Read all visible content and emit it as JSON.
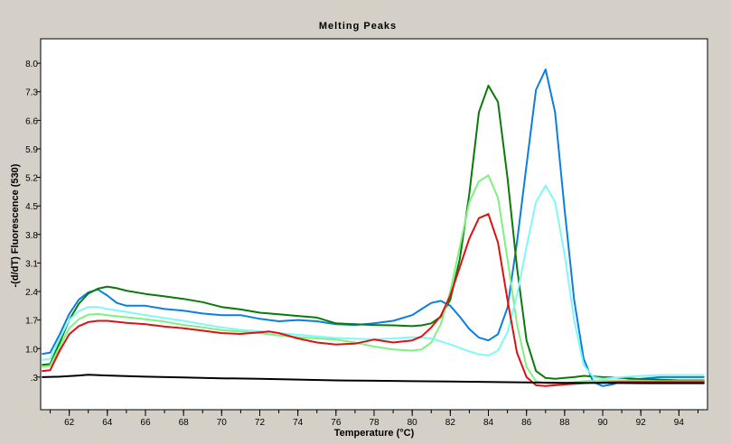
{
  "chart_data": {
    "type": "line",
    "title": "Melting Peaks",
    "xlabel": "Temperature (°C)",
    "ylabel": "-(d/dT) Fluorescence (530)",
    "xlim": [
      60.5,
      95.5
    ],
    "ylim": [
      -0.5,
      8.6
    ],
    "x_ticks_minor": [
      61,
      62,
      63,
      64,
      65,
      66,
      67,
      68,
      69,
      70,
      71,
      72,
      73,
      74,
      75,
      76,
      77,
      78,
      79,
      80,
      81,
      82,
      83,
      84,
      85,
      86,
      87,
      88,
      89,
      90,
      91,
      92,
      93,
      94,
      95
    ],
    "x_tick_labels": [
      "62",
      "64",
      "66",
      "68",
      "70",
      "72",
      "74",
      "76",
      "78",
      "80",
      "82",
      "84",
      "86",
      "88",
      "90",
      "92",
      "94"
    ],
    "y_tick_labels": [
      "8.0",
      "7.3",
      "6.6",
      "5.9",
      "5.2",
      "4.5",
      "3.8",
      "3.1",
      "2.4",
      "1.7",
      "1.0",
      ".3"
    ],
    "grid": false,
    "series": [
      {
        "color": "#0a7fe0",
        "x": [
          60.6,
          61.0,
          61.5,
          62.0,
          62.5,
          63.0,
          63.5,
          64.0,
          64.5,
          65.0,
          66.0,
          67.0,
          68.0,
          69.0,
          70.0,
          71.0,
          72.0,
          73.0,
          74.0,
          75.0,
          76.0,
          77.0,
          78.0,
          79.0,
          80.0,
          80.5,
          81.0,
          81.5,
          82.0,
          82.5,
          83.0,
          83.5,
          84.0,
          84.5,
          85.0,
          85.5,
          86.0,
          86.5,
          87.0,
          87.5,
          88.0,
          88.5,
          89.0,
          89.5,
          90.0,
          90.5,
          91.0,
          91.5,
          92.0,
          93.0,
          94.0,
          95.3
        ],
        "y": [
          0.87,
          0.9,
          1.35,
          1.85,
          2.2,
          2.38,
          2.45,
          2.3,
          2.12,
          2.05,
          2.05,
          1.97,
          1.93,
          1.86,
          1.82,
          1.82,
          1.73,
          1.67,
          1.7,
          1.67,
          1.6,
          1.58,
          1.62,
          1.68,
          1.82,
          1.97,
          2.12,
          2.17,
          2.05,
          1.78,
          1.48,
          1.27,
          1.2,
          1.35,
          2.0,
          3.6,
          5.5,
          7.35,
          7.85,
          6.8,
          4.4,
          2.2,
          0.75,
          0.18,
          0.08,
          0.12,
          0.2,
          0.24,
          0.26,
          0.3,
          0.3,
          0.3
        ]
      },
      {
        "color": "#0a7a0a",
        "x": [
          60.6,
          61.0,
          61.5,
          62.0,
          62.5,
          63.0,
          63.5,
          64.0,
          64.5,
          65.0,
          66.0,
          67.0,
          68.0,
          69.0,
          70.0,
          71.0,
          72.0,
          73.0,
          74.0,
          75.0,
          76.0,
          77.0,
          78.0,
          79.0,
          80.0,
          80.5,
          81.0,
          81.5,
          82.0,
          82.5,
          83.0,
          83.5,
          84.0,
          84.5,
          85.0,
          85.5,
          86.0,
          86.5,
          87.0,
          87.5,
          88.0,
          88.5,
          89.0,
          90.0,
          91.0,
          92.0,
          93.0,
          94.0,
          95.3
        ],
        "y": [
          0.6,
          0.62,
          1.15,
          1.7,
          2.1,
          2.35,
          2.47,
          2.52,
          2.48,
          2.42,
          2.34,
          2.28,
          2.22,
          2.14,
          2.02,
          1.96,
          1.88,
          1.84,
          1.8,
          1.76,
          1.62,
          1.6,
          1.58,
          1.57,
          1.55,
          1.57,
          1.62,
          1.78,
          2.2,
          3.2,
          4.8,
          6.8,
          7.45,
          7.05,
          5.2,
          3.0,
          1.2,
          0.45,
          0.28,
          0.26,
          0.28,
          0.3,
          0.33,
          0.3,
          0.28,
          0.25,
          0.24,
          0.22,
          0.22
        ]
      },
      {
        "color": "#80f080",
        "x": [
          60.6,
          61.0,
          61.5,
          62.0,
          62.5,
          63.0,
          63.5,
          64.0,
          65.0,
          66.0,
          67.0,
          68.0,
          69.0,
          70.0,
          71.0,
          72.0,
          73.0,
          74.0,
          75.0,
          76.0,
          77.0,
          78.0,
          79.0,
          80.0,
          80.5,
          81.0,
          81.5,
          82.0,
          82.5,
          83.0,
          83.5,
          84.0,
          84.5,
          85.0,
          85.5,
          86.0,
          86.5,
          87.0,
          87.5,
          88.0,
          89.0,
          90.0,
          91.0,
          92.0,
          93.0,
          94.0,
          95.3
        ],
        "y": [
          0.55,
          0.58,
          1.05,
          1.5,
          1.72,
          1.83,
          1.85,
          1.82,
          1.77,
          1.72,
          1.66,
          1.58,
          1.52,
          1.45,
          1.42,
          1.38,
          1.32,
          1.28,
          1.25,
          1.22,
          1.15,
          1.05,
          0.98,
          0.95,
          0.98,
          1.15,
          1.6,
          2.4,
          3.5,
          4.6,
          5.1,
          5.25,
          4.7,
          3.2,
          1.6,
          0.55,
          0.2,
          0.15,
          0.14,
          0.15,
          0.2,
          0.22,
          0.22,
          0.21,
          0.2,
          0.2,
          0.2
        ]
      },
      {
        "color": "#80f8f8",
        "x": [
          60.6,
          61.0,
          61.5,
          62.0,
          62.5,
          63.0,
          63.5,
          64.0,
          65.0,
          66.0,
          67.0,
          68.0,
          69.0,
          70.0,
          71.0,
          72.0,
          73.0,
          74.0,
          75.0,
          76.0,
          77.0,
          78.0,
          79.0,
          80.0,
          80.5,
          81.0,
          82.0,
          83.0,
          83.5,
          84.0,
          84.5,
          85.0,
          85.5,
          86.0,
          86.5,
          87.0,
          87.5,
          88.0,
          88.5,
          89.0,
          89.5,
          90.0,
          91.0,
          92.0,
          93.0,
          94.0,
          95.3
        ],
        "y": [
          0.72,
          0.75,
          1.25,
          1.7,
          1.92,
          2.02,
          2.02,
          1.97,
          1.9,
          1.82,
          1.75,
          1.68,
          1.6,
          1.52,
          1.46,
          1.42,
          1.38,
          1.34,
          1.3,
          1.26,
          1.24,
          1.23,
          1.25,
          1.28,
          1.27,
          1.25,
          1.1,
          0.93,
          0.86,
          0.83,
          0.95,
          1.4,
          2.3,
          3.5,
          4.6,
          5.0,
          4.6,
          3.3,
          1.7,
          0.6,
          0.3,
          0.26,
          0.3,
          0.33,
          0.35,
          0.35,
          0.35
        ]
      },
      {
        "color": "#e01010",
        "x": [
          60.6,
          61.0,
          61.5,
          62.0,
          62.5,
          63.0,
          63.5,
          64.0,
          65.0,
          66.0,
          67.0,
          68.0,
          69.0,
          70.0,
          71.0,
          72.0,
          72.5,
          73.0,
          74.0,
          75.0,
          76.0,
          77.0,
          78.0,
          79.0,
          80.0,
          80.5,
          81.0,
          81.5,
          82.0,
          82.5,
          83.0,
          83.5,
          84.0,
          84.5,
          85.0,
          85.5,
          86.0,
          86.5,
          87.0,
          87.5,
          88.0,
          89.0,
          90.0,
          91.0,
          92.0,
          93.0,
          94.0,
          95.3
        ],
        "y": [
          0.45,
          0.47,
          0.95,
          1.35,
          1.55,
          1.65,
          1.68,
          1.68,
          1.63,
          1.6,
          1.54,
          1.5,
          1.44,
          1.38,
          1.36,
          1.4,
          1.42,
          1.38,
          1.25,
          1.15,
          1.1,
          1.12,
          1.22,
          1.15,
          1.2,
          1.3,
          1.52,
          1.8,
          2.3,
          3.0,
          3.7,
          4.2,
          4.3,
          3.6,
          2.2,
          0.9,
          0.3,
          0.1,
          0.08,
          0.1,
          0.12,
          0.15,
          0.17,
          0.18,
          0.18,
          0.18,
          0.18,
          0.18
        ]
      },
      {
        "color": "#000000",
        "x": [
          60.6,
          61.5,
          62.5,
          63.0,
          64.0,
          66.0,
          68.0,
          70.0,
          72.0,
          74.0,
          76.0,
          78.0,
          80.0,
          82.0,
          84.0,
          86.0,
          88.0,
          90.0,
          92.0,
          94.0,
          95.3
        ],
        "y": [
          0.3,
          0.31,
          0.34,
          0.36,
          0.34,
          0.31,
          0.29,
          0.27,
          0.26,
          0.24,
          0.22,
          0.21,
          0.2,
          0.19,
          0.18,
          0.17,
          0.16,
          0.16,
          0.15,
          0.15,
          0.15
        ]
      }
    ]
  }
}
